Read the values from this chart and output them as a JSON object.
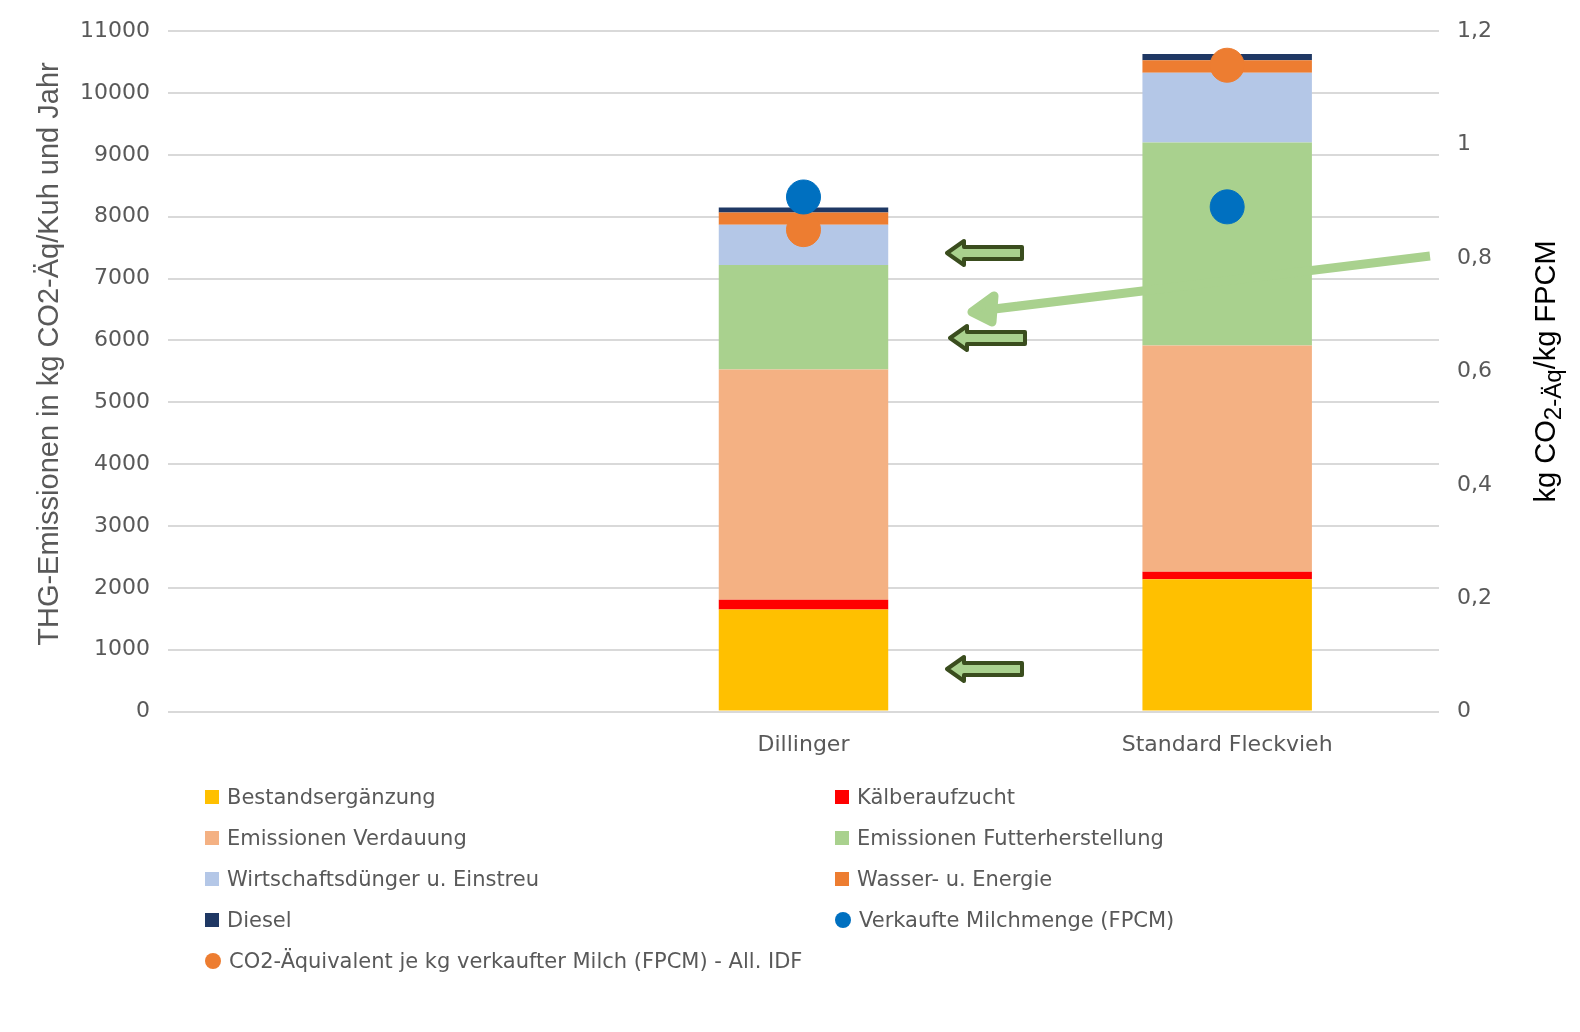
{
  "chart_data": {
    "type": "bar",
    "stacked": true,
    "categories": [
      null,
      "Dillinger",
      "Standard Fleckvieh"
    ],
    "ylabel": "THG-Emissionen in kg CO2-Äq/Kuh und Jahr",
    "y2label": "kg CO$_{2-Äq}$/kg FPCM",
    "ylim": [
      0,
      11000
    ],
    "yticks": [
      0,
      1000,
      2000,
      3000,
      4000,
      5000,
      6000,
      7000,
      8000,
      9000,
      10000,
      11000
    ],
    "y2lim": [
      0,
      1.2
    ],
    "y2ticks": [
      0,
      {
        "value": 0.2,
        "label": "0,2"
      },
      {
        "value": 0.4,
        "label": "0,4"
      },
      {
        "value": 0.6,
        "label": "0,6"
      },
      {
        "value": 0.8,
        "label": "0,8"
      },
      1,
      {
        "value": 1.2,
        "label": "1,2"
      }
    ],
    "grid": "y",
    "legend": "bottom",
    "marker": "circle",
    "series": [
      {
        "name": "Bestandsergänzung",
        "color": "#ffc000",
        "values": [
          null,
          1650,
          2140
        ]
      },
      {
        "name": "Kälberaufzucht",
        "color": "#ff0000",
        "values": [
          null,
          160,
          120
        ]
      },
      {
        "name": "Emissionen Verdauung",
        "color": "#f4b183",
        "values": [
          null,
          3720,
          3660
        ]
      },
      {
        "name": "Emissionen Futterherstellung",
        "color": "#a9d18e",
        "values": [
          null,
          1690,
          3280
        ]
      },
      {
        "name": "Wirtschaftsdünger u. Einstreu",
        "color": "#b4c7e7",
        "values": [
          null,
          650,
          1130
        ]
      },
      {
        "name": "Wasser- u. Energie",
        "color": "#ed7d31",
        "values": [
          null,
          200,
          200
        ]
      },
      {
        "name": "Diesel",
        "color": "#1f3864",
        "values": [
          null,
          80,
          100
        ]
      },
      {
        "name": "Verkaufte Milchmenge (FPCM)",
        "type": "scatter",
        "axis": "y",
        "color": "#0070c0",
        "values": [
          null,
          8320,
          8160
        ]
      },
      {
        "name": "CO2-Äquivalent je kg verkaufter Milch (FPCM) - All. IDF",
        "type": "scatter",
        "axis": "y2",
        "color": "#ed7d31",
        "values": [
          null,
          0.85,
          1.14
        ]
      }
    ]
  }
}
